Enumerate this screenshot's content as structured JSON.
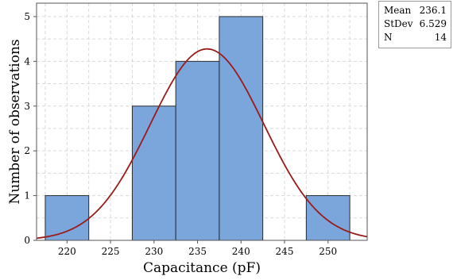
{
  "chart_data": {
    "type": "bar",
    "subtype": "histogram",
    "xlabel": "Capacitance (pF)",
    "ylabel": "Number of observations",
    "xlim": [
      216.5,
      254.5
    ],
    "ylim": [
      0,
      5.3
    ],
    "x_ticks": [
      "220",
      "225",
      "230",
      "235",
      "240",
      "245",
      "250"
    ],
    "y_ticks": [
      "0",
      "1",
      "2",
      "3",
      "4",
      "5"
    ],
    "bins": [
      {
        "start": 217.5,
        "end": 222.5,
        "count": 1
      },
      {
        "start": 222.5,
        "end": 227.5,
        "count": 0
      },
      {
        "start": 227.5,
        "end": 232.5,
        "count": 3
      },
      {
        "start": 232.5,
        "end": 237.5,
        "count": 4
      },
      {
        "start": 237.5,
        "end": 242.5,
        "count": 5
      },
      {
        "start": 242.5,
        "end": 247.5,
        "count": 0
      },
      {
        "start": 247.5,
        "end": 252.5,
        "count": 1
      }
    ],
    "fit": {
      "type": "normal",
      "mean": 236.1,
      "stdev": 6.529,
      "n": 14,
      "bin_width": 5
    },
    "grid": true,
    "bar_color": "#7aa6dc",
    "bar_edge_color": "#2b2b2b",
    "curve_color": "#9b1b1b",
    "grid_color": "#d9d9d9"
  },
  "stats": [
    {
      "label": "Mean",
      "value": "236.1"
    },
    {
      "label": "StDev",
      "value": "6.529"
    },
    {
      "label": "N",
      "value": "14"
    }
  ]
}
